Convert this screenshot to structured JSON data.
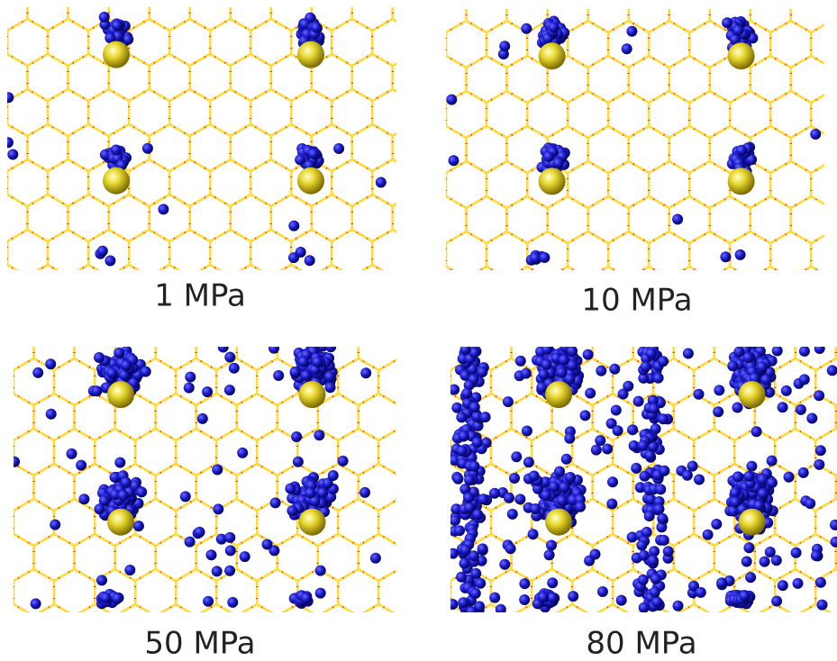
{
  "panels": [
    {
      "label": "1 MPa"
    },
    {
      "label": "10 MPa"
    },
    {
      "label": "50 MPa"
    },
    {
      "label": "80 MPa"
    }
  ]
}
